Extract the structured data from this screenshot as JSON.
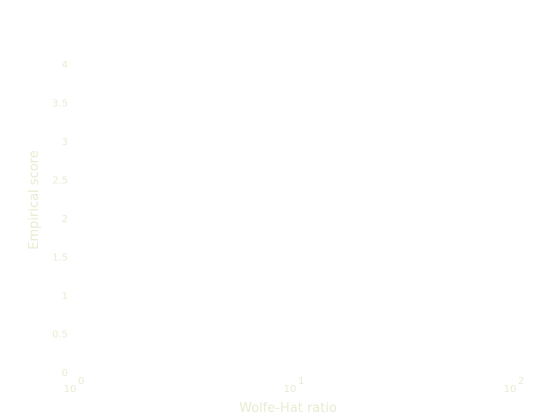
{
  "colors": {
    "background": "#ffffff",
    "text": "#e8ecd2"
  },
  "chart_data": {
    "type": "scatter",
    "title": "",
    "xlabel": "Wolfe-Hat ratio",
    "ylabel": "Empirical score",
    "x_scale": "log",
    "xlim": [
      1,
      100
    ],
    "ylim": [
      0,
      4
    ],
    "x_ticks": [
      {
        "value": 1,
        "base": "10",
        "exp": "0"
      },
      {
        "value": 10,
        "base": "10",
        "exp": "1"
      },
      {
        "value": 100,
        "base": "10",
        "exp": "2"
      }
    ],
    "y_ticks": [
      {
        "value": 0,
        "label": "0"
      },
      {
        "value": 0.5,
        "label": "0.5"
      },
      {
        "value": 1,
        "label": "1"
      },
      {
        "value": 1.5,
        "label": "1.5"
      },
      {
        "value": 2,
        "label": "2"
      },
      {
        "value": 2.5,
        "label": "2.5"
      },
      {
        "value": 3,
        "label": "3"
      },
      {
        "value": 3.5,
        "label": "3.5"
      },
      {
        "value": 4,
        "label": "4"
      }
    ],
    "grid": false,
    "series": []
  }
}
